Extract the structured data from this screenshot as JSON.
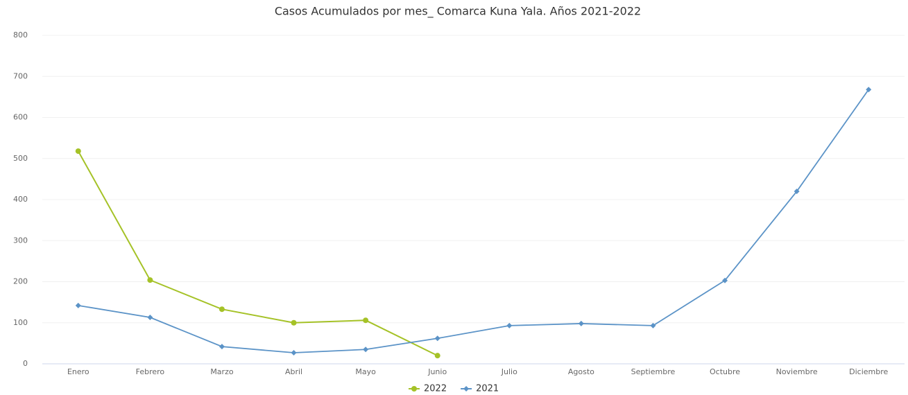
{
  "chart_data": {
    "type": "line",
    "title": "Casos Acumulados por mes_ Comarca Kuna Yala. Años 2021-2022",
    "categories": [
      "Enero",
      "Febrero",
      "Marzo",
      "Abril",
      "Mayo",
      "Junio",
      "Julio",
      "Agosto",
      "Septiembre",
      "Octubre",
      "Noviembre",
      "Diciembre"
    ],
    "series": [
      {
        "name": "2022",
        "color": "#a5c227",
        "marker": "circle",
        "values": [
          518,
          204,
          133,
          100,
          106,
          20,
          null,
          null,
          null,
          null,
          null,
          null
        ]
      },
      {
        "name": "2021",
        "color": "#5b93c7",
        "marker": "diamond",
        "values": [
          142,
          113,
          42,
          27,
          35,
          62,
          93,
          98,
          93,
          203,
          420,
          668
        ]
      }
    ],
    "ylim": [
      0,
      800
    ],
    "yticks": [
      0,
      100,
      200,
      300,
      400,
      500,
      600,
      700,
      800
    ],
    "grid": true,
    "legend": "bottom"
  }
}
